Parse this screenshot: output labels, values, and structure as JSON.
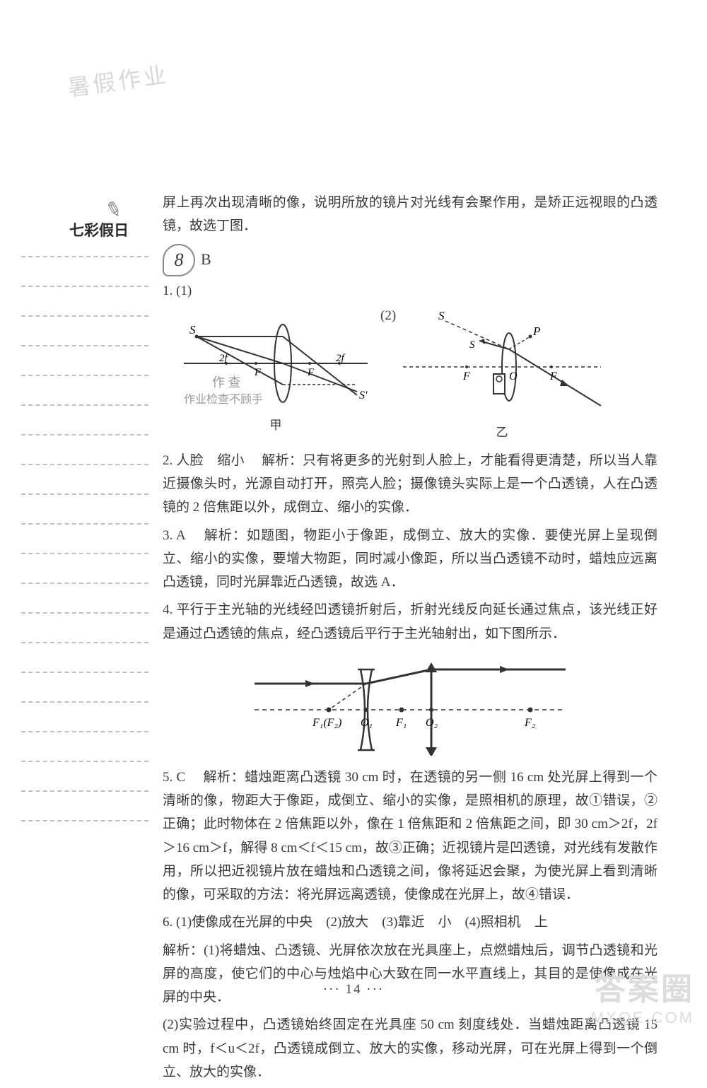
{
  "stamp": "暑假作业",
  "sidebar": {
    "title": "七彩假日",
    "dash_count": 20
  },
  "intro": "屏上再次出现清晰的像，说明所放的镜片对光线有会聚作用，是矫正远视眼的凸透镜，故选丁图．",
  "section8": {
    "number": "8",
    "letter": "B"
  },
  "q1": {
    "label": "1.",
    "sub1": "(1)",
    "sub2": "(2)",
    "caption1": "甲",
    "caption2": "乙",
    "hand1": "作 查",
    "hand2": "作业检查不顾手",
    "fig1": {
      "labels": {
        "S": "S",
        "S2": "S'",
        "two_f_left": "2f",
        "two_f_right": "2f",
        "F_left": "F",
        "F_right": "F"
      }
    },
    "fig2": {
      "labels": {
        "S": "S",
        "P": "P",
        "F_left": "F",
        "O": "O",
        "F_right": "F"
      }
    }
  },
  "q2": {
    "label": "2.",
    "ans": "人脸　缩小",
    "text": "解析：只有将更多的光射到人脸上，才能看得更清楚，所以当人靠近摄像头时，光源自动打开，照亮人脸；摄像镜头实际上是一个凸透镜，人在凸透镜的 2 倍焦距以外，成倒立、缩小的实像．"
  },
  "q3": {
    "label": "3.",
    "ans": "A",
    "text": "解析：如题图，物距小于像距，成倒立、放大的实像．要使光屏上呈现倒立、缩小的实像，要增大物距，同时减小像距，所以当凸透镜不动时，蜡烛应远离凸透镜，同时光屏靠近凸透镜，故选 A．"
  },
  "q4": {
    "label": "4.",
    "text": "平行于主光轴的光线经凹透镜折射后，折射光线反向延长通过焦点，该光线正好是通过凸透镜的焦点，经凸透镜后平行于主光轴射出，如下图所示．",
    "fig": {
      "labels": {
        "F1F2": "F₁(F₂)",
        "O1": "O₁",
        "F1r": "F₁",
        "O2": "O₂",
        "F2r": "F₂"
      }
    }
  },
  "q5": {
    "label": "5.",
    "ans": "C",
    "text": "解析：蜡烛距离凸透镜 30 cm 时，在透镜的另一侧 16 cm 处光屏上得到一个清晰的像，物距大于像距，成倒立、缩小的实像，是照相机的原理，故①错误，②正确；此时物体在 2 倍焦距以外，像在 1 倍焦距和 2 倍焦距之间，即 30 cm＞2f，2f＞16 cm＞f，解得 8 cm＜f＜15 cm，故③正确；近视镜片是凹透镜，对光线有发散作用，所以把近视镜片放在蜡烛和凸透镜之间，像将延迟会聚，为使光屏上看到清晰的像，可采取的方法：将光屏远离透镜，使像成在光屏上，故④错误．"
  },
  "q6": {
    "label": "6.",
    "ans": "(1)使像成在光屏的中央　(2)放大　(3)靠近　小　(4)照相机　上",
    "text1": "解析：(1)将蜡烛、凸透镜、光屏依次放在光具座上，点燃蜡烛后，调节凸透镜和光屏的高度，使它们的中心与烛焰中心大致在同一水平直线上，其目的是使像成在光屏的中央．",
    "text2": "(2)实验过程中，凸透镜始终固定在光具座 50 cm 刻度线处．当蜡烛距离凸透镜 15 cm 时，f＜u＜2f，凸透镜成倒立、放大的实像，移动光屏，可在光屏上得到一个倒立、放大的实像．"
  },
  "page_number": "··· 14 ···",
  "watermark": {
    "line1": "答案圈",
    "line2": "MXQE.COM"
  },
  "colors": {
    "text": "#3a3a3a",
    "dash": "#bfbfbf",
    "bg": "#ffffff",
    "wm": "#dcdcdc"
  }
}
